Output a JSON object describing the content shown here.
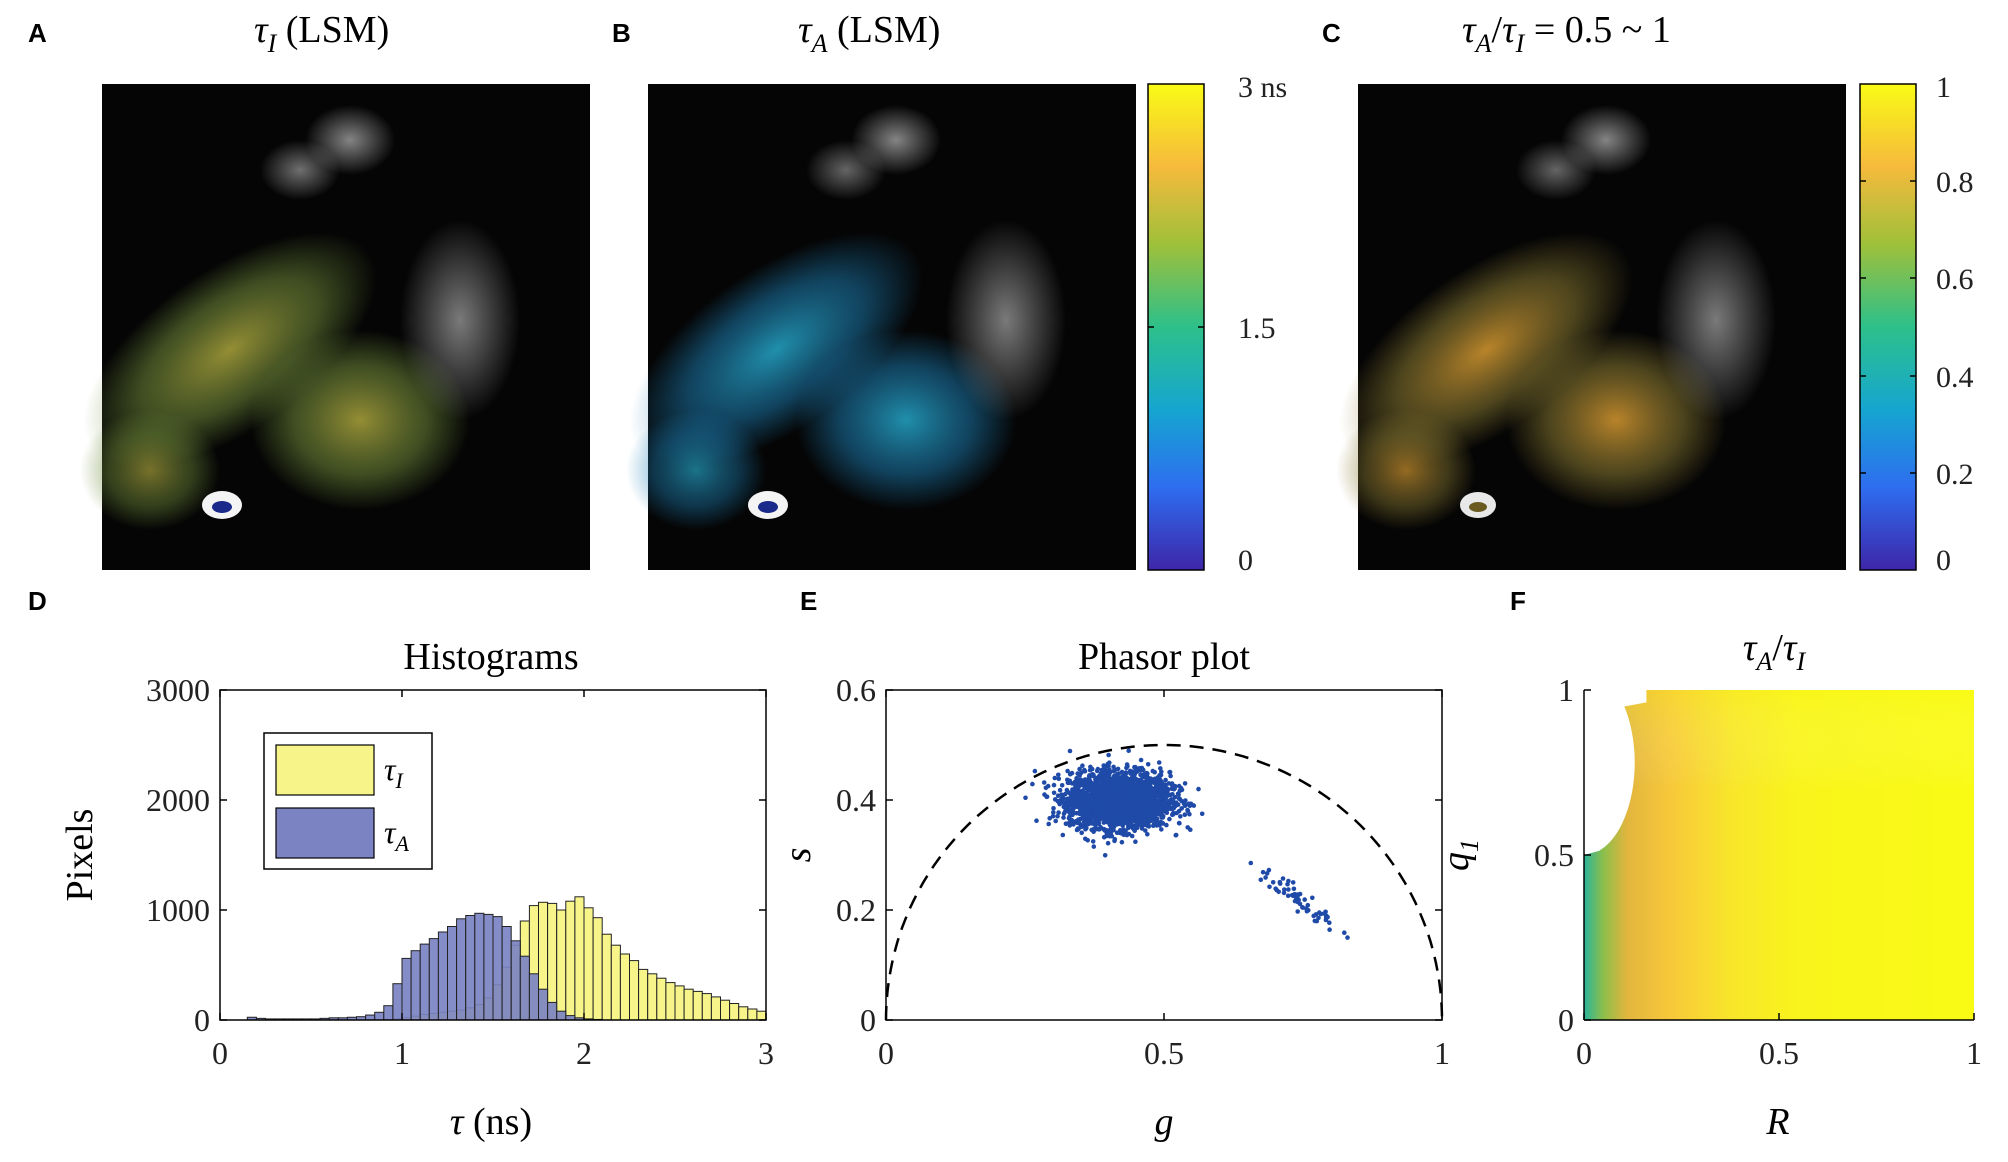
{
  "colors": {
    "yellow_hist": "#f7f58a",
    "blue_hist": "#7b83c3",
    "scatter": "#1f4aa8",
    "colormap": [
      "#3e26a8",
      "#2e6df0",
      "#15a6d0",
      "#2dc08a",
      "#9fc03a",
      "#f6ba3c",
      "#f9fb15"
    ]
  },
  "panels": {
    "A": {
      "letter": "A",
      "title_sym": "τ",
      "title_sub": "I",
      "title_rest": " (LSM)"
    },
    "B": {
      "letter": "B",
      "title_sym": "τ",
      "title_sub": "A",
      "title_rest": " (LSM)"
    },
    "C": {
      "letter": "C",
      "title_sym1": "τ",
      "title_sub1": "A",
      "title_slash": "/",
      "title_sym2": "τ",
      "title_sub2": "I",
      "title_rest": " = 0.5 ~ 1"
    },
    "D": {
      "letter": "D"
    },
    "E": {
      "letter": "E"
    },
    "F": {
      "letter": "F"
    }
  },
  "colorbars": {
    "B": {
      "ticks": [
        "3 ns",
        "1.5",
        "0"
      ]
    },
    "C": {
      "ticks": [
        "1",
        "0.8",
        "0.6",
        "0.4",
        "0.2",
        "0"
      ]
    }
  },
  "chart_data": [
    {
      "panel": "D",
      "type": "bar",
      "title": "Histograms",
      "xlabel_sym": "τ",
      "xlabel_rest": " (ns)",
      "ylabel": "Pixels",
      "xlim": [
        0,
        3
      ],
      "ylim": [
        0,
        3000
      ],
      "xticks": [
        "0",
        "1",
        "2",
        "3"
      ],
      "yticks": [
        "0",
        "1000",
        "2000",
        "3000"
      ],
      "bin_width": 0.05,
      "x": [
        0.175,
        0.225,
        0.275,
        0.325,
        0.375,
        0.425,
        0.475,
        0.525,
        0.575,
        0.625,
        0.675,
        0.725,
        0.775,
        0.825,
        0.875,
        0.925,
        0.975,
        1.025,
        1.075,
        1.125,
        1.175,
        1.225,
        1.275,
        1.325,
        1.375,
        1.425,
        1.475,
        1.525,
        1.575,
        1.625,
        1.675,
        1.725,
        1.775,
        1.825,
        1.875,
        1.925,
        1.975,
        2.025,
        2.075,
        2.125,
        2.175,
        2.225,
        2.275,
        2.325,
        2.375,
        2.425,
        2.475,
        2.525,
        2.575,
        2.625,
        2.675,
        2.725,
        2.775,
        2.825,
        2.875,
        2.925,
        2.975
      ],
      "series": [
        {
          "name": "τ_I",
          "legend_sym": "τ",
          "legend_sub": "I",
          "values": [
            0,
            0,
            0,
            0,
            0,
            0,
            0,
            0,
            0,
            0,
            0,
            0,
            0,
            0,
            0,
            5,
            10,
            20,
            35,
            50,
            60,
            70,
            80,
            90,
            110,
            140,
            200,
            320,
            480,
            680,
            900,
            1040,
            1070,
            1060,
            1000,
            1080,
            1120,
            1020,
            930,
            780,
            680,
            600,
            540,
            460,
            420,
            380,
            340,
            310,
            280,
            260,
            240,
            210,
            180,
            150,
            120,
            100,
            80
          ]
        },
        {
          "name": "τ_A",
          "legend_sym": "τ",
          "legend_sub": "A",
          "values": [
            25,
            15,
            10,
            10,
            10,
            10,
            10,
            10,
            15,
            20,
            20,
            25,
            30,
            45,
            70,
            130,
            330,
            560,
            630,
            690,
            740,
            800,
            850,
            920,
            950,
            970,
            960,
            940,
            850,
            720,
            580,
            420,
            280,
            160,
            80,
            40,
            20,
            10,
            5,
            0,
            0,
            0,
            0,
            0,
            0,
            0,
            0,
            0,
            0,
            0,
            0,
            0,
            0,
            0,
            0,
            0,
            0
          ]
        }
      ]
    },
    {
      "panel": "E",
      "type": "scatter",
      "title": "Phasor plot",
      "xlabel": "g",
      "ylabel": "s",
      "xlim": [
        0,
        1
      ],
      "ylim": [
        0,
        0.6
      ],
      "xticks": [
        "0",
        "0.5",
        "1"
      ],
      "yticks": [
        "0",
        "0.2",
        "0.4",
        "0.6"
      ],
      "reference": "universal semicircle (dashed)",
      "clusters": [
        {
          "name": "main cluster",
          "center": [
            0.42,
            0.4
          ],
          "spread": [
            0.045,
            0.025
          ],
          "count": 2600
        },
        {
          "name": "secondary cluster",
          "center": [
            0.74,
            0.22
          ],
          "spread": [
            0.035,
            0.012
          ],
          "count": 60
        }
      ]
    },
    {
      "panel": "F",
      "type": "heatmap",
      "title_sym1": "τ",
      "title_sub1": "A",
      "title_slash": "/",
      "title_sym2": "τ",
      "title_sub2": "I",
      "xlabel": "R",
      "ylabel_sym": "q",
      "ylabel_sub": "1",
      "xlim": [
        0,
        1
      ],
      "ylim": [
        0,
        1
      ],
      "xticks": [
        "0",
        "0.5",
        "1"
      ],
      "yticks": [
        "0",
        "0.5",
        "1"
      ],
      "crange": [
        0,
        1
      ]
    }
  ]
}
